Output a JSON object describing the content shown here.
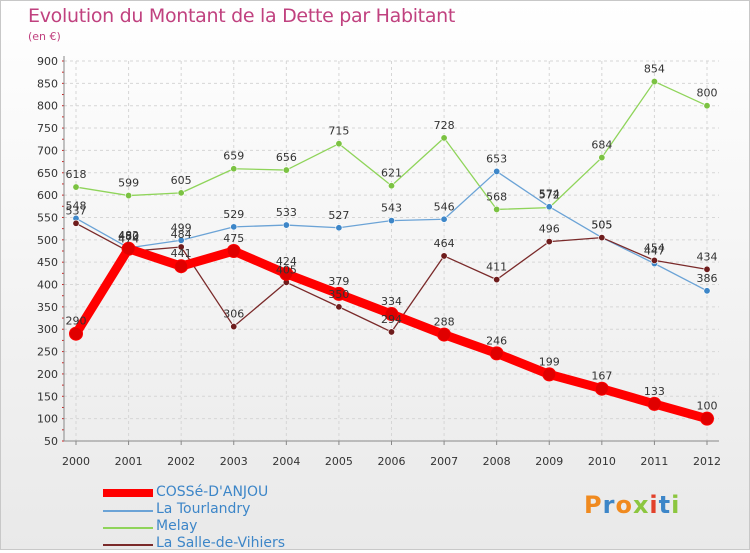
{
  "header": {
    "title": "Evolution du Montant de la Dette par Habitant",
    "subtitle": "(en €)"
  },
  "brand": {
    "text": "Proxiti",
    "letters": [
      {
        "ch": "P",
        "color": "#f08a1f"
      },
      {
        "ch": "r",
        "color": "#3d86c8"
      },
      {
        "ch": "o",
        "color": "#f08a1f"
      },
      {
        "ch": "x",
        "color": "#8cc63f"
      },
      {
        "ch": "i",
        "color": "#e2412b"
      },
      {
        "ch": "t",
        "color": "#3d86c8"
      },
      {
        "ch": "i",
        "color": "#8cc63f"
      }
    ]
  },
  "chart_data": {
    "type": "line",
    "title": "Evolution du Montant de la Dette par Habitant",
    "subtitle": "(en €)",
    "x": [
      "2000",
      "2001",
      "2002",
      "2003",
      "2004",
      "2005",
      "2006",
      "2007",
      "2008",
      "2009",
      "2010",
      "2011",
      "2012"
    ],
    "ylim": [
      50,
      900
    ],
    "yticks": [
      50,
      100,
      150,
      200,
      250,
      300,
      350,
      400,
      450,
      500,
      550,
      600,
      650,
      700,
      750,
      800,
      850,
      900
    ],
    "grid": true,
    "legend_position": "bottom-left",
    "series": [
      {
        "name": "COSSé-D'ANJOU",
        "color": "#ff0000",
        "marker": "#e00000",
        "label_color": "#333333",
        "values": [
          290,
          480,
          441,
          475,
          424,
          379,
          334,
          288,
          246,
          199,
          167,
          133,
          100
        ]
      },
      {
        "name": "La Tourlandry",
        "color": "#6ba3d6",
        "marker": "#3d86c8",
        "values": [
          548,
          482,
          499,
          529,
          533,
          527,
          543,
          546,
          653,
          574,
          505,
          447,
          386
        ]
      },
      {
        "name": "Melay",
        "color": "#8fd45a",
        "marker": "#7bc242",
        "values": [
          618,
          599,
          605,
          659,
          656,
          715,
          621,
          728,
          568,
          572,
          684,
          854,
          800
        ]
      },
      {
        "name": "La Salle-de-Vihiers",
        "color": "#7a2a2a",
        "marker": "#6e1c1c",
        "values": [
          537,
          474,
          484,
          306,
          405,
          350,
          294,
          464,
          411,
          496,
          505,
          454,
          434
        ]
      }
    ]
  }
}
